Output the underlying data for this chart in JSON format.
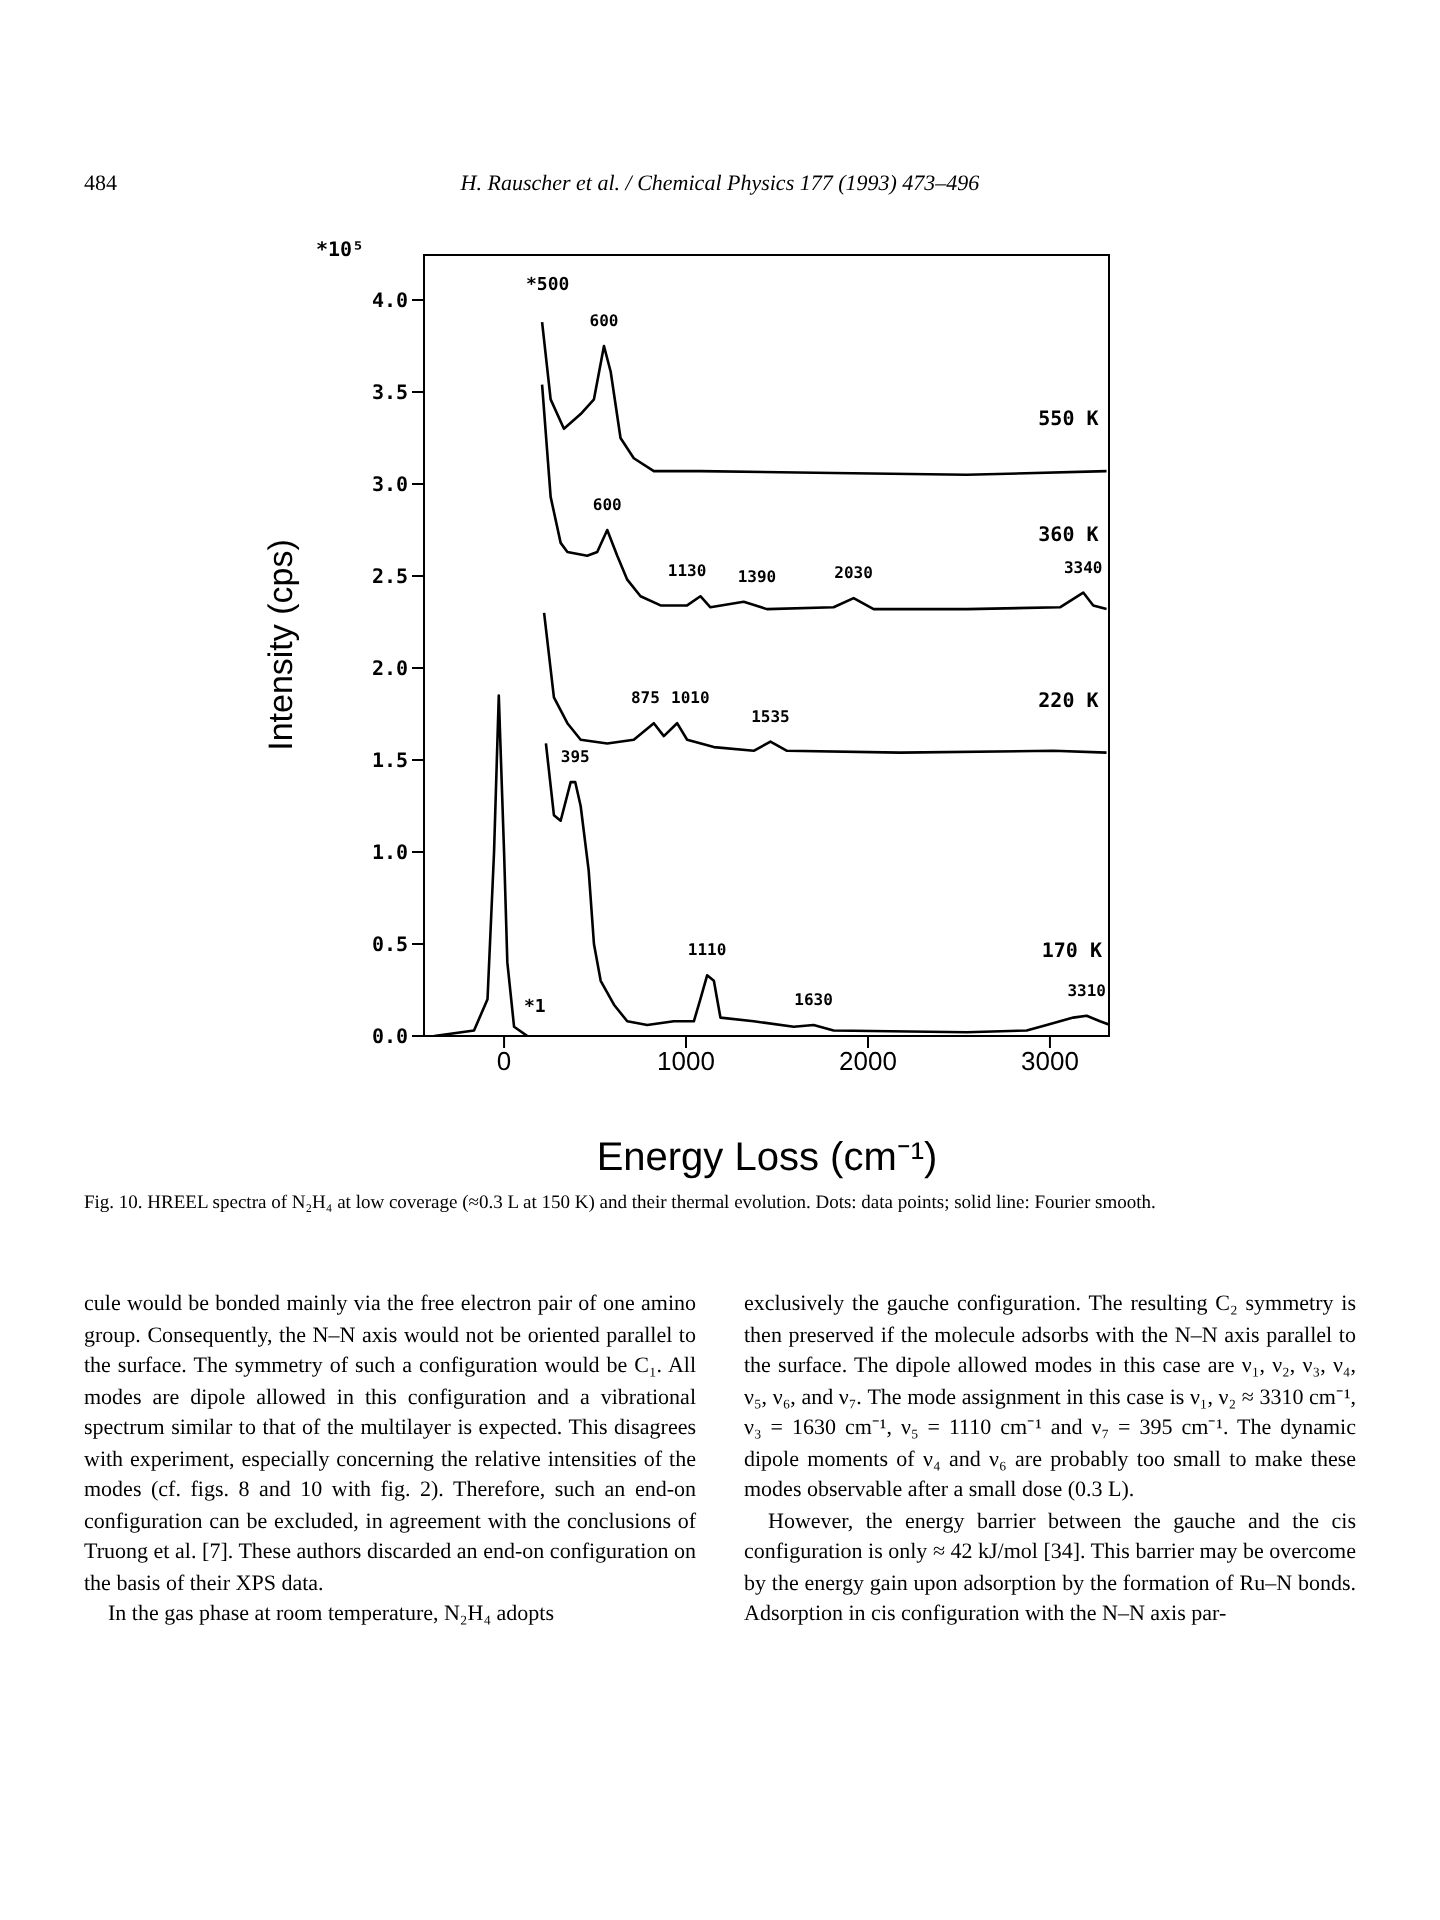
{
  "chart_data": {
    "type": "line",
    "xlabel": "Energy Loss (cm⁻¹)",
    "ylabel": "Intensity (cps)",
    "xlim": [
      -440,
      3330
    ],
    "xticks": [
      0,
      1000,
      2000,
      3000
    ],
    "ylim": [
      0,
      4.25
    ],
    "yticks": [
      {
        "value": 0,
        "label": "0.0"
      },
      {
        "value": 0.5,
        "label": "0.5"
      },
      {
        "value": 1,
        "label": "1.0"
      },
      {
        "value": 1.5,
        "label": "1.5"
      },
      {
        "value": 2,
        "label": "2.0"
      },
      {
        "value": 2.5,
        "label": "2.5"
      },
      {
        "value": 3,
        "label": "3.0"
      },
      {
        "value": 3.5,
        "label": "3.5"
      },
      {
        "value": 4,
        "label": "4.0"
      }
    ],
    "grid": false,
    "marker": "none",
    "line_style": "solid",
    "series": [
      {
        "color": "#000000",
        "x": [
          -384,
          -165,
          -91,
          -55,
          -29,
          0,
          18,
          55,
          128
        ],
        "values": [
          0,
          0.03,
          0.2,
          1,
          1.85,
          1,
          0.4,
          0.05,
          0
        ]
      },
      {
        "name": "170 K",
        "color": "#000000",
        "x": [
          230,
          274,
          311,
          366,
          391,
          421,
          465,
          494,
          531,
          604,
          677,
          787,
          933,
          1043,
          1079,
          1116,
          1153,
          1189,
          1372,
          1592,
          1701,
          1811,
          2543,
          2872,
          2982,
          3128,
          3202,
          3275,
          3330
        ],
        "values": [
          1.59,
          1.2,
          1.17,
          1.38,
          1.38,
          1.25,
          0.9,
          0.5,
          0.3,
          0.17,
          0.08,
          0.06,
          0.08,
          0.08,
          0.2,
          0.33,
          0.3,
          0.1,
          0.08,
          0.05,
          0.06,
          0.03,
          0.02,
          0.03,
          0.06,
          0.1,
          0.11,
          0.08,
          0.06
        ]
      },
      {
        "name": "220 K",
        "color": "#000000",
        "x": [
          220,
          274,
          348,
          421,
          567,
          713,
          823,
          878,
          951,
          1006,
          1153,
          1372,
          1464,
          1555,
          2177,
          3019,
          3311
        ],
        "values": [
          2.3,
          1.84,
          1.7,
          1.61,
          1.59,
          1.61,
          1.7,
          1.63,
          1.7,
          1.61,
          1.57,
          1.55,
          1.6,
          1.55,
          1.54,
          1.55,
          1.54
        ]
      },
      {
        "name": "360 K",
        "color": "#000000",
        "x": [
          209,
          256,
          311,
          348,
          457,
          512,
          567,
          622,
          677,
          750,
          860,
          1006,
          1079,
          1134,
          1317,
          1445,
          1811,
          1921,
          2031,
          2543,
          3055,
          3183,
          3238,
          3311
        ],
        "values": [
          3.54,
          2.93,
          2.68,
          2.63,
          2.61,
          2.63,
          2.75,
          2.61,
          2.48,
          2.39,
          2.34,
          2.34,
          2.39,
          2.33,
          2.36,
          2.32,
          2.33,
          2.38,
          2.32,
          2.32,
          2.33,
          2.41,
          2.34,
          2.32
        ]
      },
      {
        "name": "550 K",
        "color": "#000000",
        "x": [
          209,
          256,
          329,
          421,
          494,
          549,
          586,
          640,
          713,
          823,
          1079,
          1811,
          2543,
          3311
        ],
        "values": [
          3.88,
          3.46,
          3.3,
          3.38,
          3.46,
          3.75,
          3.61,
          3.25,
          3.14,
          3.07,
          3.07,
          3.06,
          3.05,
          3.07
        ]
      }
    ],
    "annotations": [
      "484",
      "H. Rauscher et al. / Chemical Physics 177 (1993) 473–496",
      "*10⁵",
      "*500",
      "*1",
      "Fig. 10. HREEL spectra of N₂H₄ at low coverage (≈0.3 L at 150 K) and their thermal evolution. Dots: data points; solid line: Fourier smooth.",
      "cule would be bonded mainly via the free electron pair of one amino group. Consequently, the N–N axis would not be oriented parallel to the surface. The symmetry of such a configuration would be C₁. All modes are dipole allowed in this configuration and a vibrational spectrum similar to that of the multilayer is expected. This disagrees with experiment, especially concerning the relative intensities of the modes (cf. figs. 8 and 10 with fig. 2). Therefore, such an end-on configuration can be excluded, in agreement with the conclusions of Truong et al. [7]. These authors discarded an end-on configuration on the basis of their XPS data.",
      "In the gas phase at room temperature, N₂H₄ adopts",
      "exclusively the gauche configuration. The resulting C₂ symmetry is then preserved if the molecule adsorbs with the N–N axis parallel to the surface. The dipole allowed modes in this case are ν₁, ν₂, ν₃, ν₄, ν₅, ν₆, and ν₇. The mode assignment in this case is ν₁, ν₂ ≈ 3310 cm⁻¹, ν₃ = 1630 cm⁻¹, ν₅ = 1110 cm⁻¹ and ν₇ = 395 cm⁻¹. The dynamic dipole moments of ν₄ and ν₆ are probably too small to make these modes observable after a small dose (0.3 L).",
      "However, the energy barrier between the gauche and the cis configuration is only ≈ 42 kJ/mol [34]. This barrier may be overcome by the energy gain upon adsorption by the formation of Ru–N bonds. Adsorption in cis configuration with the N–N axis par-",
      {
        "text": "600",
        "x": 549,
        "y": 3.75
      },
      {
        "text": "600",
        "x": 567,
        "y": 2.75
      },
      {
        "text": "1130",
        "x": 1079,
        "y": 2.39
      },
      {
        "text": "1390",
        "x": 1317,
        "y": 2.36
      },
      {
        "text": "2030",
        "x": 1921,
        "y": 2.38
      },
      {
        "text": "3340",
        "x": 3183,
        "y": 2.41
      },
      {
        "text": "875",
        "x": 823,
        "y": 1.7
      },
      {
        "text": "1010",
        "x": 951,
        "y": 1.7
      },
      {
        "text": "1535",
        "x": 1464,
        "y": 1.6
      },
      {
        "text": "395",
        "x": 391,
        "y": 1.38
      },
      {
        "text": "1110",
        "x": 1116,
        "y": 0.33
      },
      {
        "text": "1630",
        "x": 1701,
        "y": 0.06
      },
      {
        "text": "3310",
        "x": 3202,
        "y": 0.11
      }
    ]
  }
}
